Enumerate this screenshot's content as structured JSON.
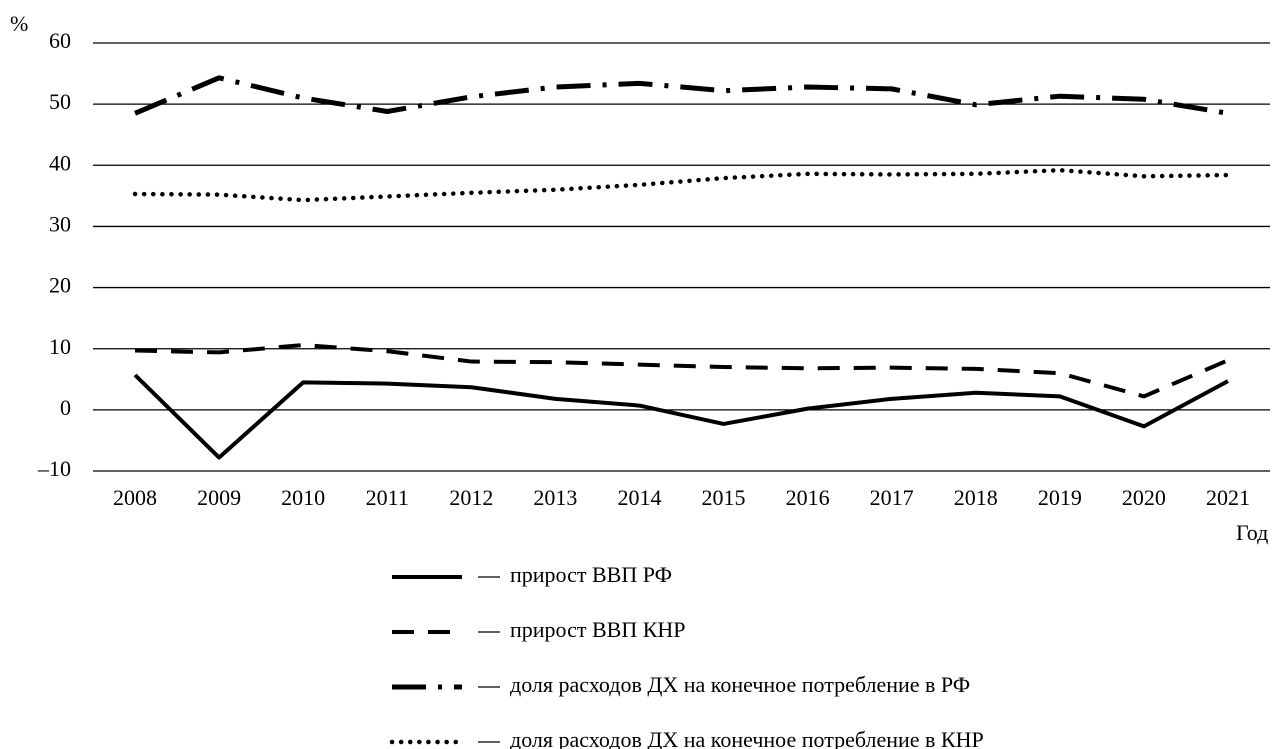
{
  "chart_data": {
    "type": "line",
    "y_label": "%",
    "x_label": "Год",
    "categories": [
      "2008",
      "2009",
      "2010",
      "2011",
      "2012",
      "2013",
      "2014",
      "2015",
      "2016",
      "2017",
      "2018",
      "2019",
      "2020",
      "2021"
    ],
    "series": [
      {
        "name": "прирост ВВП РФ",
        "color": "#000000",
        "style": "solid",
        "values": [
          5.7,
          -7.8,
          4.5,
          4.3,
          3.7,
          1.8,
          0.7,
          -2.3,
          0.2,
          1.8,
          2.8,
          2.2,
          -2.7,
          4.7
        ]
      },
      {
        "name": "прирост ВВП КНР",
        "color": "#000000",
        "style": "dashed",
        "values": [
          9.7,
          9.4,
          10.6,
          9.6,
          7.9,
          7.8,
          7.4,
          7.0,
          6.8,
          6.9,
          6.7,
          6.0,
          2.2,
          8.1
        ]
      },
      {
        "name": "доля расходов ДХ на конечное потребление в РФ",
        "color": "#000000",
        "style": "dashdot",
        "values": [
          48.5,
          54.3,
          51.0,
          48.8,
          51.2,
          52.8,
          53.4,
          52.2,
          52.8,
          52.5,
          49.9,
          51.3,
          50.8,
          48.5
        ]
      },
      {
        "name": "доля расходов ДХ на конечное потребление в КНР",
        "color": "#000000",
        "style": "dotted",
        "values": [
          35.3,
          35.2,
          34.3,
          34.9,
          35.5,
          36.0,
          36.8,
          37.9,
          38.6,
          38.5,
          38.6,
          39.2,
          38.2,
          38.4
        ]
      }
    ],
    "ylim": [
      -10,
      60
    ],
    "yticks": [
      {
        "value": -10,
        "label": "–10"
      },
      0,
      10,
      20,
      30,
      40,
      50,
      60
    ],
    "grid": true
  }
}
